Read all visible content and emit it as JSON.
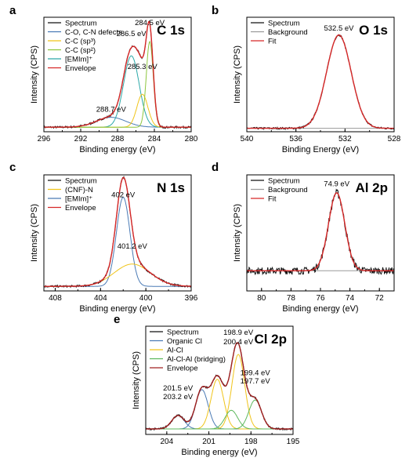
{
  "chart_data": [
    {
      "type": "line",
      "panel_letter": "a",
      "title": "C 1s",
      "xlabel": "Binding energy (eV)",
      "ylabel": "Intensity (CPS)",
      "xlim": [
        296,
        280
      ],
      "ylim": [
        0,
        100
      ],
      "reversed_x": true,
      "xticks": [
        296,
        292,
        288,
        284,
        280
      ],
      "legend": [
        "Spectrum",
        "C-O, C-N defects",
        "C-C (sp³)",
        "C-C (sp²)",
        "[EMIm]⁺",
        "Envelope"
      ],
      "legend_position": "top-left",
      "colors": {
        "Spectrum": "#111111",
        "C-O, C-N defects": "#4a7ab5",
        "C-C (sp³)": "#f0c419",
        "C-C (sp²)": "#8dc63f",
        "[EMIm]⁺": "#2aa8a8",
        "Envelope": "#d62828"
      },
      "peaks": [
        {
          "series": "C-O, C-N defects",
          "center": 288.7,
          "height": 9,
          "width": 1.6
        },
        {
          "series": "[EMIm]⁺",
          "center": 286.5,
          "height": 65,
          "width": 0.85
        },
        {
          "series": "C-C (sp³)",
          "center": 285.3,
          "height": 30,
          "width": 0.6
        },
        {
          "series": "C-C (sp²)",
          "center": 284.5,
          "height": 78,
          "width": 0.38
        }
      ],
      "background_level": 2,
      "annotations": [
        {
          "text": "286.5 eV",
          "x": 286.5,
          "y": 85
        },
        {
          "text": "284.5 eV",
          "x": 284.5,
          "y": 95
        },
        {
          "text": "285.3 eV",
          "x": 285.3,
          "y": 55
        },
        {
          "text": "288.7 eV",
          "x": 288.7,
          "y": 16
        }
      ]
    },
    {
      "type": "line",
      "panel_letter": "b",
      "title": "O 1s",
      "xlabel": "Binding Energy (eV)",
      "ylabel": "Intensity (CPS)",
      "xlim": [
        540,
        528
      ],
      "ylim": [
        0,
        100
      ],
      "reversed_x": true,
      "xticks": [
        540,
        536,
        532,
        528
      ],
      "legend": [
        "Spectrum",
        "Background",
        "Fit"
      ],
      "legend_position": "top-left",
      "colors": {
        "Spectrum": "#111111",
        "Background": "#9a9a9a",
        "Fit": "#d62828"
      },
      "peaks": [
        {
          "series": "Fit",
          "center": 532.5,
          "height": 85,
          "width": 1.0
        }
      ],
      "background_level": 1,
      "annotations": [
        {
          "text": "532.5 eV",
          "x": 532.5,
          "y": 90
        }
      ]
    },
    {
      "type": "line",
      "panel_letter": "c",
      "title": "N 1s",
      "xlabel": "Binding energy (eV)",
      "ylabel": "Intensity (CPS)",
      "xlim": [
        409,
        396
      ],
      "ylim": [
        0,
        100
      ],
      "reversed_x": true,
      "xticks": [
        408,
        404,
        400,
        396
      ],
      "legend": [
        "Spectrum",
        "(CNF)-N",
        "[EMIm]⁺",
        "Envelope"
      ],
      "legend_position": "top-left",
      "colors": {
        "Spectrum": "#111111",
        "(CNF)-N": "#f0c419",
        "[EMIm]⁺": "#4a7ab5",
        "Envelope": "#d62828"
      },
      "peaks": [
        {
          "series": "[EMIm]⁺",
          "center": 402.0,
          "height": 80,
          "width": 0.6
        },
        {
          "series": "(CNF)-N",
          "center": 401.2,
          "height": 20,
          "width": 1.6
        }
      ],
      "background_level": 2,
      "annotations": [
        {
          "text": "402 eV",
          "x": 402.0,
          "y": 82
        },
        {
          "text": "401.2 eV",
          "x": 401.2,
          "y": 36
        }
      ]
    },
    {
      "type": "line",
      "panel_letter": "d",
      "title": "Al 2p",
      "xlabel": "Binding energy (eV)",
      "ylabel": "Intensity (CPS)",
      "xlim": [
        81,
        71
      ],
      "ylim": [
        0,
        100
      ],
      "reversed_x": true,
      "xticks": [
        80,
        78,
        76,
        74,
        72
      ],
      "legend": [
        "Spectrum",
        "Background",
        "Fit"
      ],
      "legend_position": "top-left",
      "colors": {
        "Spectrum": "#111111",
        "Background": "#9a9a9a",
        "Fit": "#d62828"
      },
      "peaks": [
        {
          "series": "Fit",
          "center": 74.9,
          "height": 70,
          "width": 0.55
        }
      ],
      "background_level": 16,
      "annotations": [
        {
          "text": "74.9 eV",
          "x": 74.9,
          "y": 92
        }
      ]
    },
    {
      "type": "line",
      "panel_letter": "e",
      "title": "Cl 2p",
      "xlabel": "Binding energy (eV)",
      "ylabel": "Intensity (CPS)",
      "xlim": [
        205.5,
        195
      ],
      "ylim": [
        0,
        100
      ],
      "reversed_x": true,
      "xticks": [
        204,
        201,
        198,
        195
      ],
      "legend": [
        "Spectrum",
        "Organic Cl",
        "Al-Cl",
        "Al-Cl-Al (bridging)",
        "Envelope"
      ],
      "legend_position": "top-left",
      "colors": {
        "Spectrum": "#111111",
        "Organic Cl": "#4a7ab5",
        "Al-Cl": "#f0c419",
        "Al-Cl-Al (bridging)": "#5cb85c",
        "Envelope": "#a02020"
      },
      "peaks": [
        {
          "series": "Organic Cl",
          "center": 203.2,
          "height": 13,
          "width": 0.45
        },
        {
          "series": "Organic Cl",
          "center": 201.5,
          "height": 38,
          "width": 0.45
        },
        {
          "series": "Al-Cl",
          "center": 200.4,
          "height": 48,
          "width": 0.45
        },
        {
          "series": "Al-Cl",
          "center": 198.9,
          "height": 72,
          "width": 0.45
        },
        {
          "series": "Al-Cl-Al (bridging)",
          "center": 199.4,
          "height": 18,
          "width": 0.45
        },
        {
          "series": "Al-Cl-Al (bridging)",
          "center": 197.7,
          "height": 28,
          "width": 0.45
        }
      ],
      "background_level": 3,
      "annotations": [
        {
          "text": "198.9 eV",
          "x": 198.9,
          "y": 94
        },
        {
          "text": "200.4 eV",
          "x": 198.9,
          "y": 85
        },
        {
          "text": "199.4 eV",
          "x": 197.7,
          "y": 55
        },
        {
          "text": "197.7 eV",
          "x": 197.7,
          "y": 47
        },
        {
          "text": "201.5 eV",
          "x": 203.2,
          "y": 40
        },
        {
          "text": "203.2 eV",
          "x": 203.2,
          "y": 32
        }
      ]
    }
  ]
}
